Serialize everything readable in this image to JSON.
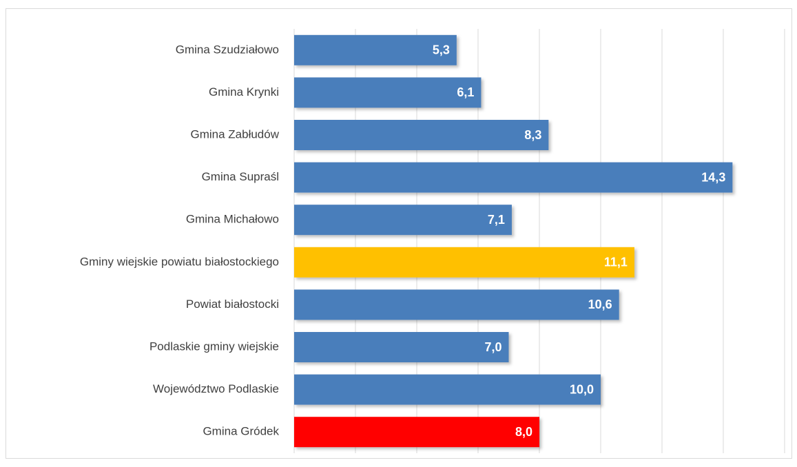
{
  "chart_data": {
    "type": "barh",
    "categories": [
      "Gmina Szudziałowo",
      "Gmina Krynki",
      "Gmina Zabłudów",
      "Gmina Supraśl ",
      "Gmina Michałowo",
      "Gminy wiejskie powiatu białostockiego",
      "Powiat białostocki",
      "Podlaskie gminy wiejskie",
      "Województwo Podlaskie",
      "Gmina Gródek"
    ],
    "values": [
      5.3,
      6.1,
      8.3,
      14.3,
      7.1,
      11.1,
      10.6,
      7.0,
      10.0,
      8.0
    ],
    "value_labels": [
      "5,3",
      "6,1",
      "8,3",
      "14,3",
      "7,1",
      "11,1",
      "10,6",
      "7,0",
      "10,0",
      "8,0"
    ],
    "colors": [
      "#4a7ebb",
      "#4a7ebb",
      "#4a7ebb",
      "#4a7ebb",
      "#4a7ebb",
      "#ffc000",
      "#4a7ebb",
      "#4a7ebb",
      "#4a7ebb",
      "#ff0000"
    ],
    "xlim": [
      0,
      16
    ],
    "xticks": [
      0,
      2,
      4,
      6,
      8,
      10,
      12,
      14,
      16
    ],
    "grid": true
  }
}
